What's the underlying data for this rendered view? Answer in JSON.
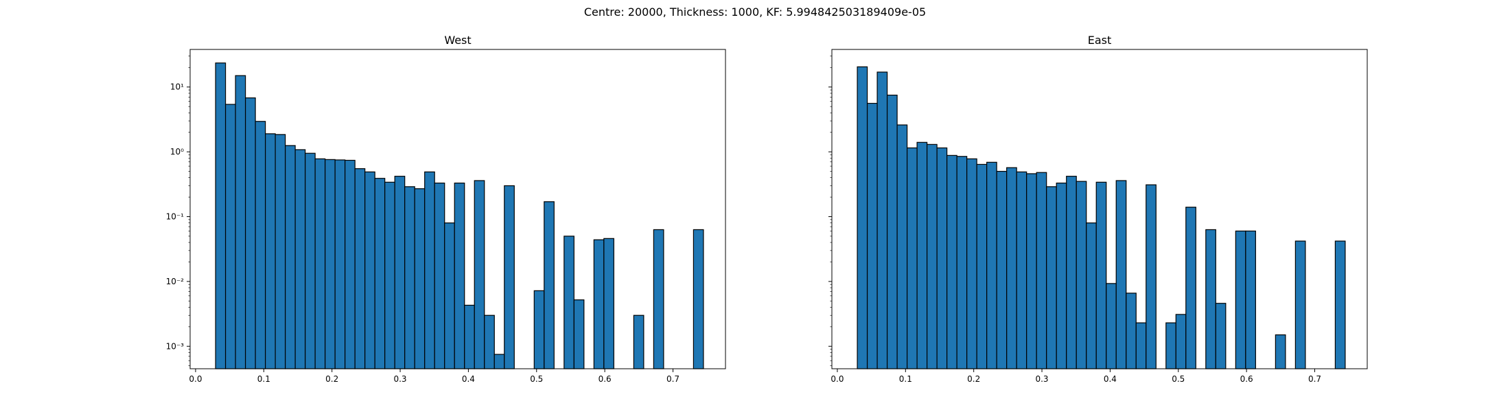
{
  "figure": {
    "title": "Centre: 20000, Thickness: 1000, KF: 5.994842503189409e-05"
  },
  "style": {
    "bar_color": "#1f77b4",
    "edge_color": "#000000"
  },
  "chart_data": [
    {
      "type": "bar",
      "title": "West",
      "xlabel": "",
      "ylabel": "",
      "yscale": "log",
      "xlim": [
        -0.008,
        0.777
      ],
      "ylim": [
        0.00045,
        38
      ],
      "bin_width": 0.0146,
      "xticks": [
        0.0,
        0.1,
        0.2,
        0.3,
        0.4,
        0.5,
        0.6,
        0.7
      ],
      "xtick_labels": [
        "0.0",
        "0.1",
        "0.2",
        "0.3",
        "0.4",
        "0.5",
        "0.6",
        "0.7"
      ],
      "yticks": [
        0.001,
        0.01,
        0.1,
        1,
        10
      ],
      "ytick_labels": [
        "10⁻³",
        "10⁻²",
        "10⁻¹",
        "10⁰",
        "10¹"
      ],
      "grid": false,
      "bins": [
        {
          "x": 0.0293,
          "value": 23.5
        },
        {
          "x": 0.0439,
          "value": 5.4
        },
        {
          "x": 0.0585,
          "value": 15.0
        },
        {
          "x": 0.0731,
          "value": 6.8
        },
        {
          "x": 0.0877,
          "value": 2.95
        },
        {
          "x": 0.1023,
          "value": 1.9
        },
        {
          "x": 0.1169,
          "value": 1.85
        },
        {
          "x": 0.1315,
          "value": 1.25
        },
        {
          "x": 0.1461,
          "value": 1.08
        },
        {
          "x": 0.1607,
          "value": 0.95
        },
        {
          "x": 0.1753,
          "value": 0.78
        },
        {
          "x": 0.1899,
          "value": 0.76
        },
        {
          "x": 0.2045,
          "value": 0.75
        },
        {
          "x": 0.2191,
          "value": 0.74
        },
        {
          "x": 0.2337,
          "value": 0.55
        },
        {
          "x": 0.2483,
          "value": 0.49
        },
        {
          "x": 0.2629,
          "value": 0.39
        },
        {
          "x": 0.2775,
          "value": 0.34
        },
        {
          "x": 0.2921,
          "value": 0.42
        },
        {
          "x": 0.3067,
          "value": 0.29
        },
        {
          "x": 0.3213,
          "value": 0.27
        },
        {
          "x": 0.3359,
          "value": 0.49
        },
        {
          "x": 0.3505,
          "value": 0.33
        },
        {
          "x": 0.3651,
          "value": 0.08
        },
        {
          "x": 0.3797,
          "value": 0.33
        },
        {
          "x": 0.3943,
          "value": 0.0043
        },
        {
          "x": 0.4089,
          "value": 0.36
        },
        {
          "x": 0.4235,
          "value": 0.003
        },
        {
          "x": 0.4381,
          "value": 0.00075
        },
        {
          "x": 0.4527,
          "value": 0.3
        },
        {
          "x": 0.4965,
          "value": 0.0072
        },
        {
          "x": 0.5111,
          "value": 0.17
        },
        {
          "x": 0.5403,
          "value": 0.05
        },
        {
          "x": 0.5549,
          "value": 0.0052
        },
        {
          "x": 0.5841,
          "value": 0.044
        },
        {
          "x": 0.5987,
          "value": 0.046
        },
        {
          "x": 0.6425,
          "value": 0.003
        },
        {
          "x": 0.6717,
          "value": 0.063
        },
        {
          "x": 0.7301,
          "value": 0.063
        }
      ]
    },
    {
      "type": "bar",
      "title": "East",
      "xlabel": "",
      "ylabel": "",
      "yscale": "log",
      "xlim": [
        -0.008,
        0.777
      ],
      "ylim": [
        0.00045,
        38
      ],
      "bin_width": 0.0146,
      "xticks": [
        0.0,
        0.1,
        0.2,
        0.3,
        0.4,
        0.5,
        0.6,
        0.7
      ],
      "xtick_labels": [
        "0.0",
        "0.1",
        "0.2",
        "0.3",
        "0.4",
        "0.5",
        "0.6",
        "0.7"
      ],
      "yticks": [
        0.001,
        0.01,
        0.1,
        1,
        10
      ],
      "ytick_labels": [],
      "grid": false,
      "bins": [
        {
          "x": 0.0293,
          "value": 20.5
        },
        {
          "x": 0.0439,
          "value": 5.6
        },
        {
          "x": 0.0585,
          "value": 17.0
        },
        {
          "x": 0.0731,
          "value": 7.5
        },
        {
          "x": 0.0877,
          "value": 2.6
        },
        {
          "x": 0.1023,
          "value": 1.15
        },
        {
          "x": 0.1169,
          "value": 1.4
        },
        {
          "x": 0.1315,
          "value": 1.3
        },
        {
          "x": 0.1461,
          "value": 1.15
        },
        {
          "x": 0.1607,
          "value": 0.88
        },
        {
          "x": 0.1753,
          "value": 0.85
        },
        {
          "x": 0.1899,
          "value": 0.78
        },
        {
          "x": 0.2045,
          "value": 0.64
        },
        {
          "x": 0.2191,
          "value": 0.69
        },
        {
          "x": 0.2337,
          "value": 0.5
        },
        {
          "x": 0.2483,
          "value": 0.57
        },
        {
          "x": 0.2629,
          "value": 0.49
        },
        {
          "x": 0.2775,
          "value": 0.46
        },
        {
          "x": 0.2921,
          "value": 0.48
        },
        {
          "x": 0.3067,
          "value": 0.29
        },
        {
          "x": 0.3213,
          "value": 0.33
        },
        {
          "x": 0.3359,
          "value": 0.42
        },
        {
          "x": 0.3505,
          "value": 0.35
        },
        {
          "x": 0.3651,
          "value": 0.08
        },
        {
          "x": 0.3797,
          "value": 0.34
        },
        {
          "x": 0.3943,
          "value": 0.0093
        },
        {
          "x": 0.4089,
          "value": 0.36
        },
        {
          "x": 0.4235,
          "value": 0.0066
        },
        {
          "x": 0.4381,
          "value": 0.0023
        },
        {
          "x": 0.4527,
          "value": 0.31
        },
        {
          "x": 0.4819,
          "value": 0.0023
        },
        {
          "x": 0.4965,
          "value": 0.0031
        },
        {
          "x": 0.5111,
          "value": 0.14
        },
        {
          "x": 0.5403,
          "value": 0.063
        },
        {
          "x": 0.5549,
          "value": 0.0046
        },
        {
          "x": 0.5841,
          "value": 0.06
        },
        {
          "x": 0.5987,
          "value": 0.06
        },
        {
          "x": 0.6425,
          "value": 0.0015
        },
        {
          "x": 0.6717,
          "value": 0.042
        },
        {
          "x": 0.7301,
          "value": 0.042
        }
      ]
    }
  ]
}
